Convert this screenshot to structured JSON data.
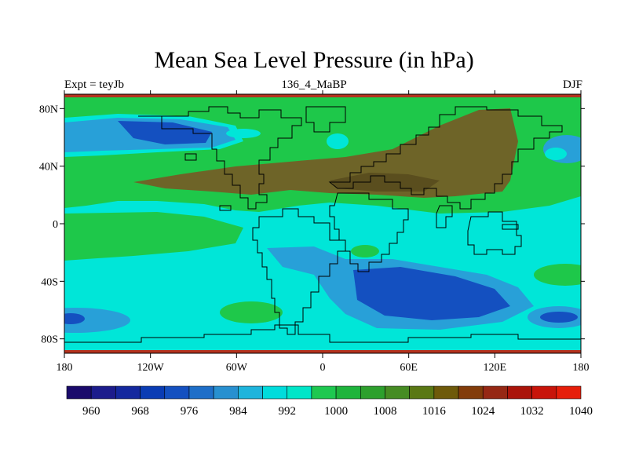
{
  "title": "Mean Sea Level Pressure (in hPa)",
  "subtitle_left": "Expt = teyJb",
  "subtitle_center": "136_4_MaBP",
  "subtitle_right": "DJF",
  "map": {
    "projection": "cylindrical-equidistant",
    "lon_range": [
      -180,
      180
    ],
    "lat_range": [
      -90,
      90
    ],
    "x_ticks": [
      {
        "value": -180,
        "label": "180"
      },
      {
        "value": -120,
        "label": "120W"
      },
      {
        "value": -60,
        "label": "60W"
      },
      {
        "value": 0,
        "label": "0"
      },
      {
        "value": 60,
        "label": "60E"
      },
      {
        "value": 120,
        "label": "120E"
      },
      {
        "value": 180,
        "label": "180"
      }
    ],
    "y_ticks": [
      {
        "value": 80,
        "label": "80N"
      },
      {
        "value": 40,
        "label": "40N"
      },
      {
        "value": 0,
        "label": "0"
      },
      {
        "value": -40,
        "label": "40S"
      },
      {
        "value": -80,
        "label": "80S"
      }
    ]
  },
  "colorbar": {
    "colors": [
      "#1a0a6b",
      "#1c1c8c",
      "#14289e",
      "#0a3cb4",
      "#1450c0",
      "#1e6ec8",
      "#2890d0",
      "#1eb4dc",
      "#00dcdc",
      "#00e6c8",
      "#1ec850",
      "#1eb43c",
      "#2da02d",
      "#468c23",
      "#5a7814",
      "#6e5a0a",
      "#823c0a",
      "#962814",
      "#aa140a",
      "#c8140a",
      "#e61e0a"
    ],
    "labels": [
      "960",
      "968",
      "976",
      "984",
      "992",
      "1000",
      "1008",
      "1016",
      "1024",
      "1032",
      "1040"
    ]
  },
  "colors": {
    "deep_low": "#1450c0",
    "low": "#28a0d8",
    "cyan": "#00e6d8",
    "green": "#1ec84a",
    "olive": "#5a7a14",
    "brown": "#6e6428",
    "high": "#b4321e"
  }
}
